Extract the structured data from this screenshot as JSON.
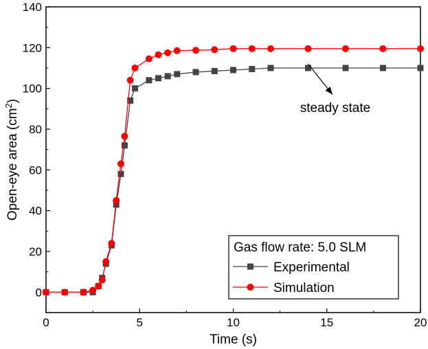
{
  "chart_data": {
    "type": "line",
    "title": "",
    "xlabel": "Time (s)",
    "ylabel": {
      "main": "Open-eye area (cm",
      "sup": "2",
      "close": ")"
    },
    "xlim": [
      0,
      20
    ],
    "ylim": [
      -10,
      140
    ],
    "xticks": [
      0,
      5,
      10,
      15,
      20
    ],
    "yticks": [
      0,
      20,
      40,
      60,
      80,
      100,
      120,
      140
    ],
    "grid": false,
    "legend": {
      "title": "Gas flow rate: 5.0 SLM",
      "placement": "bottom-right"
    },
    "annotation": {
      "text": "steady state",
      "arrow_from": [
        14.0,
        112
      ],
      "arrow_to": [
        15.3,
        97
      ]
    },
    "series": [
      {
        "name": "Experimental",
        "color": "#444444",
        "marker": "square",
        "x": [
          0,
          1,
          2,
          2.5,
          2.8,
          3.0,
          3.2,
          3.5,
          3.75,
          4.0,
          4.2,
          4.5,
          4.75,
          5.5,
          6.0,
          6.5,
          7.0,
          8.0,
          9.0,
          10.0,
          11.0,
          12.0,
          14.0,
          16.0,
          18.0,
          20.0
        ],
        "y": [
          0,
          0,
          0,
          0,
          3,
          7,
          14,
          23,
          43,
          58,
          72,
          94,
          100,
          104,
          105,
          106,
          107,
          108,
          108.5,
          109,
          109.5,
          110,
          110,
          110,
          110,
          110
        ]
      },
      {
        "name": "Simulation",
        "color": "#ff0000",
        "marker": "circle",
        "x": [
          0,
          1,
          2,
          2.5,
          2.8,
          3.0,
          3.2,
          3.5,
          3.75,
          4.0,
          4.2,
          4.5,
          4.75,
          5.5,
          6.0,
          6.5,
          7.0,
          8.0,
          9.0,
          10.0,
          11.0,
          12.0,
          14.0,
          16.0,
          18.0,
          20.0
        ],
        "y": [
          0,
          0,
          0,
          1,
          3,
          6,
          15,
          24,
          45,
          63,
          76.5,
          104,
          110,
          114.5,
          116.5,
          117.5,
          118.5,
          118.7,
          119,
          119.5,
          119.5,
          119.5,
          119.5,
          119.5,
          119.5,
          119.5
        ]
      }
    ]
  }
}
